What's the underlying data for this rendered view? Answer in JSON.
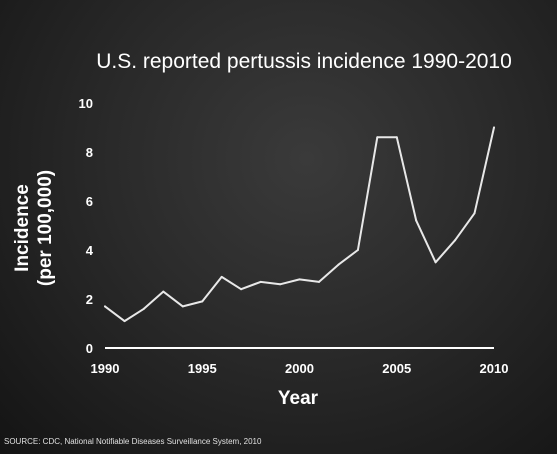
{
  "chart_data": {
    "type": "line",
    "title": "U.S. reported pertussis incidence 1990-2010",
    "xlabel": "Year",
    "ylabel": [
      "Incidence",
      "(per 100,000)"
    ],
    "xlim": [
      1990,
      2010
    ],
    "ylim": [
      0,
      10
    ],
    "x_ticks": [
      1990,
      1995,
      2000,
      2005,
      2010
    ],
    "y_ticks": [
      0,
      2,
      4,
      6,
      8,
      10
    ],
    "grid": false,
    "colors": {
      "line": "#e8e8e8",
      "axis": "#ffffff",
      "text": "#ffffff"
    },
    "series": [
      {
        "x": [
          1990,
          1991,
          1992,
          1993,
          1994,
          1995,
          1996,
          1997,
          1998,
          1999,
          2000,
          2001,
          2002,
          2003,
          2004,
          2005,
          2006,
          2007,
          2008,
          2009,
          2010
        ],
        "values": [
          1.7,
          1.1,
          1.6,
          2.3,
          1.7,
          1.9,
          2.9,
          2.4,
          2.7,
          2.6,
          2.8,
          2.7,
          3.4,
          4.0,
          8.6,
          8.6,
          5.2,
          3.5,
          4.4,
          5.5,
          9.0
        ]
      }
    ],
    "source": "SOURCE: CDC, National Notifiable Diseases Surveillance System, 2010"
  }
}
